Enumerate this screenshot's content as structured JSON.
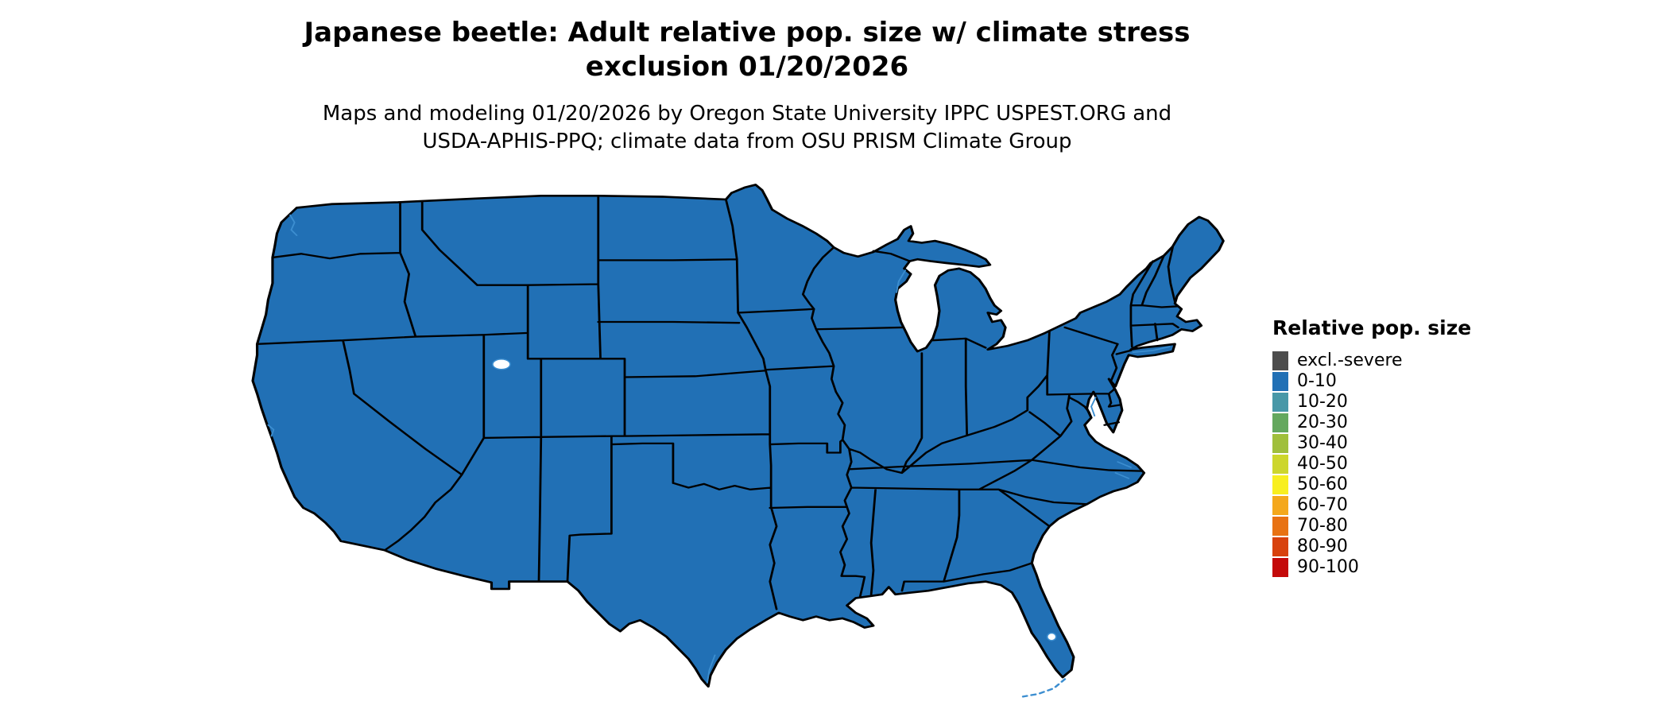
{
  "header": {
    "title_line1": "Japanese beetle: Adult relative pop. size w/ climate stress",
    "title_line2": "exclusion 01/20/2026",
    "subtitle_line1": "Maps and modeling 01/20/2026 by Oregon State University IPPC USPEST.ORG and",
    "subtitle_line2": "USDA-APHIS-PPQ; climate data from OSU PRISM Climate Group"
  },
  "legend": {
    "title": "Relative pop. size",
    "items": [
      {
        "label": "excl.-severe",
        "color": "#4d4d4d"
      },
      {
        "label": "0-10",
        "color": "#2170b5"
      },
      {
        "label": "10-20",
        "color": "#4898a8"
      },
      {
        "label": "20-30",
        "color": "#64a85e"
      },
      {
        "label": "30-40",
        "color": "#a0bf3c"
      },
      {
        "label": "40-50",
        "color": "#cdd62c"
      },
      {
        "label": "50-60",
        "color": "#f8ef1f"
      },
      {
        "label": "60-70",
        "color": "#f4a81c"
      },
      {
        "label": "70-80",
        "color": "#e87213"
      },
      {
        "label": "80-90",
        "color": "#d8420e"
      },
      {
        "label": "90-100",
        "color": "#c40a0a"
      }
    ]
  },
  "map": {
    "region": "Contiguous United States choropleth",
    "all_states_value": "0-10",
    "state_fill": "#2170b5",
    "border_color": "#000000",
    "water_accent": "#3c8ed0",
    "background": "#ffffff"
  }
}
